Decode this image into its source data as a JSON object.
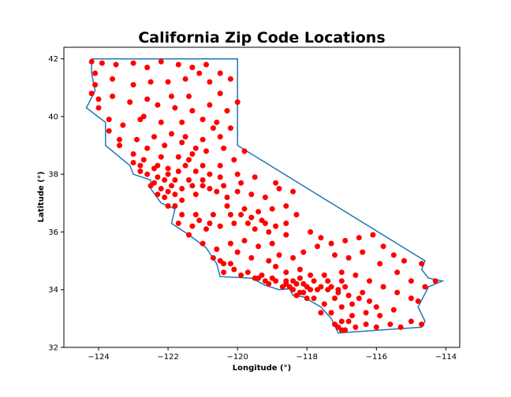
{
  "chart_data": {
    "type": "scatter",
    "title": "California Zip Code Locations",
    "xlabel": "Longitude (°)",
    "ylabel": "Latitude (°)",
    "xlim": [
      -125,
      -113.6
    ],
    "ylim": [
      32,
      42.4
    ],
    "xticks": [
      "−124",
      "−122",
      "−120",
      "−118",
      "−116",
      "−114"
    ],
    "yticks": [
      "32",
      "34",
      "36",
      "38",
      "40",
      "42"
    ],
    "grid": false,
    "legend": "none",
    "boundary_color": "#1f77b4",
    "marker_color": "#ff0000",
    "boundary": [
      [
        -124.2,
        42.0
      ],
      [
        -120.0,
        42.0
      ],
      [
        -120.0,
        39.0
      ],
      [
        -114.6,
        35.0
      ],
      [
        -114.7,
        34.7
      ],
      [
        -114.5,
        34.4
      ],
      [
        -114.1,
        34.3
      ],
      [
        -114.5,
        34.1
      ],
      [
        -114.8,
        33.4
      ],
      [
        -114.6,
        32.9
      ],
      [
        -114.7,
        32.7
      ],
      [
        -117.1,
        32.5
      ],
      [
        -117.3,
        33.0
      ],
      [
        -117.6,
        33.4
      ],
      [
        -118.1,
        33.75
      ],
      [
        -118.4,
        33.8
      ],
      [
        -118.5,
        34.03
      ],
      [
        -118.8,
        34.0
      ],
      [
        -119.2,
        34.15
      ],
      [
        -119.6,
        34.4
      ],
      [
        -120.5,
        34.45
      ],
      [
        -120.6,
        34.9
      ],
      [
        -120.9,
        35.45
      ],
      [
        -121.4,
        35.9
      ],
      [
        -121.9,
        36.3
      ],
      [
        -121.8,
        36.8
      ],
      [
        -122.2,
        37.0
      ],
      [
        -122.5,
        37.5
      ],
      [
        -122.5,
        37.8
      ],
      [
        -123.0,
        38.0
      ],
      [
        -123.1,
        38.3
      ],
      [
        -123.8,
        39.0
      ],
      [
        -123.8,
        39.8
      ],
      [
        -124.35,
        40.3
      ],
      [
        -124.1,
        40.9
      ],
      [
        -124.2,
        41.5
      ],
      [
        -124.2,
        42.0
      ]
    ],
    "points": [
      [
        -124.2,
        41.9
      ],
      [
        -123.9,
        41.85
      ],
      [
        -123.5,
        41.8
      ],
      [
        -123.0,
        41.85
      ],
      [
        -122.6,
        41.7
      ],
      [
        -122.2,
        41.9
      ],
      [
        -121.7,
        41.8
      ],
      [
        -121.3,
        41.7
      ],
      [
        -120.9,
        41.8
      ],
      [
        -120.5,
        41.5
      ],
      [
        -120.2,
        41.3
      ],
      [
        -120.8,
        41.2
      ],
      [
        -121.5,
        41.3
      ],
      [
        -122.0,
        41.2
      ],
      [
        -122.5,
        41.2
      ],
      [
        -123.0,
        41.1
      ],
      [
        -123.6,
        41.3
      ],
      [
        -124.1,
        41.1
      ],
      [
        -124.0,
        40.6
      ],
      [
        -123.6,
        40.7
      ],
      [
        -123.1,
        40.5
      ],
      [
        -122.6,
        40.6
      ],
      [
        -122.3,
        40.4
      ],
      [
        -121.8,
        40.3
      ],
      [
        -121.3,
        40.2
      ],
      [
        -120.8,
        40.4
      ],
      [
        -120.3,
        40.2
      ],
      [
        -120.6,
        39.8
      ],
      [
        -121.0,
        39.9
      ],
      [
        -121.6,
        39.8
      ],
      [
        -122.2,
        39.8
      ],
      [
        -122.8,
        39.9
      ],
      [
        -123.3,
        39.7
      ],
      [
        -123.7,
        39.5
      ],
      [
        -123.4,
        39.2
      ],
      [
        -122.9,
        39.2
      ],
      [
        -122.4,
        39.3
      ],
      [
        -121.9,
        39.4
      ],
      [
        -121.5,
        39.3
      ],
      [
        -121.0,
        39.2
      ],
      [
        -120.5,
        39.3
      ],
      [
        -120.2,
        39.6
      ],
      [
        -120.4,
        38.9
      ],
      [
        -120.9,
        38.8
      ],
      [
        -121.3,
        38.7
      ],
      [
        -121.7,
        38.6
      ],
      [
        -122.2,
        38.6
      ],
      [
        -122.7,
        38.5
      ],
      [
        -123.0,
        38.4
      ],
      [
        -122.8,
        38.1
      ],
      [
        -122.4,
        38.2
      ],
      [
        -122.0,
        38.2
      ],
      [
        -121.5,
        38.3
      ],
      [
        -121.0,
        38.3
      ],
      [
        -120.5,
        38.3
      ],
      [
        -120.1,
        38.5
      ],
      [
        -119.8,
        38.8
      ],
      [
        -120.0,
        38.0
      ],
      [
        -120.5,
        37.9
      ],
      [
        -121.0,
        37.8
      ],
      [
        -121.4,
        37.8
      ],
      [
        -121.8,
        37.8
      ],
      [
        -122.1,
        37.8
      ],
      [
        -122.3,
        37.9
      ],
      [
        -122.4,
        37.7
      ],
      [
        -122.2,
        37.5
      ],
      [
        -122.0,
        37.4
      ],
      [
        -121.8,
        37.3
      ],
      [
        -121.9,
        37.6
      ],
      [
        -122.1,
        37.2
      ],
      [
        -121.6,
        37.1
      ],
      [
        -121.2,
        37.3
      ],
      [
        -120.8,
        37.5
      ],
      [
        -120.4,
        37.6
      ],
      [
        -120.0,
        37.4
      ],
      [
        -119.6,
        37.3
      ],
      [
        -119.2,
        37.2
      ],
      [
        -118.8,
        37.5
      ],
      [
        -118.4,
        37.4
      ],
      [
        -118.6,
        36.9
      ],
      [
        -119.0,
        36.8
      ],
      [
        -119.4,
        36.7
      ],
      [
        -119.8,
        36.8
      ],
      [
        -120.3,
        36.9
      ],
      [
        -120.7,
        36.6
      ],
      [
        -121.2,
        36.6
      ],
      [
        -121.6,
        36.6
      ],
      [
        -121.8,
        36.9
      ],
      [
        -121.3,
        36.2
      ],
      [
        -120.9,
        36.1
      ],
      [
        -120.5,
        36.2
      ],
      [
        -120.1,
        36.3
      ],
      [
        -119.7,
        36.3
      ],
      [
        -119.3,
        36.4
      ],
      [
        -118.9,
        36.2
      ],
      [
        -118.6,
        35.9
      ],
      [
        -119.0,
        35.6
      ],
      [
        -119.4,
        35.5
      ],
      [
        -119.8,
        35.7
      ],
      [
        -120.2,
        35.6
      ],
      [
        -120.6,
        35.4
      ],
      [
        -120.7,
        35.1
      ],
      [
        -120.4,
        34.9
      ],
      [
        -120.1,
        34.7
      ],
      [
        -119.7,
        34.6
      ],
      [
        -119.3,
        34.5
      ],
      [
        -119.0,
        34.4
      ],
      [
        -118.6,
        34.3
      ],
      [
        -118.3,
        34.2
      ],
      [
        -118.0,
        34.1
      ],
      [
        -117.7,
        34.0
      ],
      [
        -117.4,
        34.0
      ],
      [
        -117.1,
        33.9
      ],
      [
        -116.8,
        33.8
      ],
      [
        -116.5,
        33.7
      ],
      [
        -116.2,
        33.6
      ],
      [
        -116.0,
        33.4
      ],
      [
        -116.3,
        33.2
      ],
      [
        -116.7,
        33.1
      ],
      [
        -117.0,
        32.9
      ],
      [
        -117.1,
        32.7
      ],
      [
        -116.9,
        32.6
      ],
      [
        -116.6,
        32.7
      ],
      [
        -116.3,
        32.8
      ],
      [
        -116.0,
        32.7
      ],
      [
        -115.6,
        32.8
      ],
      [
        -115.3,
        32.7
      ],
      [
        -115.0,
        32.9
      ],
      [
        -114.7,
        32.8
      ],
      [
        -114.8,
        33.6
      ],
      [
        -114.6,
        34.1
      ],
      [
        -114.3,
        34.3
      ],
      [
        -114.7,
        34.9
      ],
      [
        -115.2,
        35.0
      ],
      [
        -115.5,
        35.2
      ],
      [
        -115.8,
        35.5
      ],
      [
        -116.1,
        35.9
      ],
      [
        -116.5,
        35.8
      ],
      [
        -116.9,
        35.7
      ],
      [
        -117.3,
        35.6
      ],
      [
        -117.7,
        35.5
      ],
      [
        -118.1,
        35.3
      ],
      [
        -118.4,
        35.1
      ],
      [
        -118.2,
        34.7
      ],
      [
        -117.9,
        34.5
      ],
      [
        -117.5,
        34.5
      ],
      [
        -117.0,
        34.6
      ],
      [
        -116.6,
        34.5
      ],
      [
        -116.2,
        34.3
      ],
      [
        -115.8,
        34.1
      ],
      [
        -115.4,
        33.9
      ],
      [
        -115.0,
        33.7
      ],
      [
        -115.5,
        33.3
      ],
      [
        -115.9,
        33.1
      ],
      [
        -117.3,
        33.2
      ],
      [
        -117.5,
        33.5
      ],
      [
        -117.8,
        33.7
      ],
      [
        -118.1,
        33.9
      ],
      [
        -118.3,
        33.8
      ],
      [
        -118.4,
        34.0
      ],
      [
        -118.5,
        34.1
      ],
      [
        -118.7,
        34.1
      ],
      [
        -119.1,
        34.2
      ],
      [
        -119.5,
        34.4
      ],
      [
        -119.9,
        34.5
      ],
      [
        -120.4,
        34.6
      ],
      [
        -121.0,
        35.6
      ],
      [
        -121.4,
        35.9
      ],
      [
        -121.7,
        36.3
      ],
      [
        -122.0,
        36.9
      ],
      [
        -122.3,
        37.3
      ],
      [
        -122.5,
        37.6
      ],
      [
        -122.6,
        38.0
      ],
      [
        -123.0,
        38.7
      ],
      [
        -123.4,
        39.0
      ],
      [
        -123.7,
        39.9
      ],
      [
        -124.0,
        40.3
      ],
      [
        -124.2,
        40.8
      ],
      [
        -124.1,
        41.5
      ],
      [
        -121.1,
        41.5
      ],
      [
        -120.5,
        40.8
      ],
      [
        -121.9,
        40.7
      ],
      [
        -122.7,
        40.0
      ],
      [
        -121.4,
        40.7
      ],
      [
        -120.0,
        40.5
      ],
      [
        -120.7,
        39.6
      ],
      [
        -121.2,
        38.1
      ],
      [
        -120.8,
        38.0
      ],
      [
        -119.9,
        37.7
      ],
      [
        -119.5,
        37.9
      ],
      [
        -118.9,
        37.7
      ],
      [
        -118.6,
        36.3
      ],
      [
        -118.3,
        36.6
      ],
      [
        -117.9,
        36.0
      ],
      [
        -117.6,
        35.8
      ],
      [
        -117.2,
        35.2
      ],
      [
        -116.8,
        35.1
      ],
      [
        -116.4,
        35.3
      ],
      [
        -115.9,
        34.9
      ],
      [
        -115.4,
        34.6
      ],
      [
        -115.0,
        34.3
      ],
      [
        -118.8,
        35.2
      ],
      [
        -119.1,
        35.0
      ],
      [
        -119.6,
        35.1
      ],
      [
        -120.0,
        35.3
      ],
      [
        -118.9,
        34.8
      ],
      [
        -118.6,
        34.6
      ],
      [
        -118.2,
        34.4
      ],
      [
        -117.8,
        34.3
      ],
      [
        -117.4,
        34.3
      ],
      [
        -117.0,
        34.3
      ],
      [
        -116.9,
        34.1
      ],
      [
        -117.2,
        33.7
      ],
      [
        -117.0,
        33.4
      ],
      [
        -116.7,
        33.5
      ],
      [
        -116.4,
        33.9
      ],
      [
        -117.6,
        33.2
      ],
      [
        -117.2,
        32.8
      ],
      [
        -117.0,
        32.6
      ],
      [
        -116.8,
        32.9
      ],
      [
        -118.0,
        33.7
      ],
      [
        -118.2,
        33.9
      ],
      [
        -118.4,
        34.3
      ],
      [
        -118.1,
        34.2
      ],
      [
        -117.9,
        34.0
      ],
      [
        -117.6,
        34.1
      ],
      [
        -117.3,
        34.1
      ],
      [
        -117.1,
        34.0
      ],
      [
        -118.6,
        34.2
      ],
      [
        -118.9,
        34.3
      ],
      [
        -119.2,
        34.3
      ],
      [
        -119.4,
        34.4
      ],
      [
        -120.2,
        34.9
      ],
      [
        -120.5,
        35.0
      ],
      [
        -121.1,
        36.4
      ],
      [
        -120.8,
        36.3
      ],
      [
        -120.2,
        36.6
      ],
      [
        -119.9,
        36.6
      ],
      [
        -119.6,
        36.5
      ],
      [
        -119.2,
        36.3
      ],
      [
        -119.5,
        36.1
      ],
      [
        -119.1,
        36.0
      ],
      [
        -120.3,
        37.2
      ],
      [
        -120.6,
        37.4
      ],
      [
        -121.0,
        37.6
      ],
      [
        -121.3,
        37.6
      ],
      [
        -121.6,
        37.5
      ],
      [
        -122.0,
        38.0
      ],
      [
        -121.7,
        38.1
      ],
      [
        -121.4,
        38.5
      ],
      [
        -121.2,
        38.9
      ],
      [
        -121.6,
        39.1
      ],
      [
        -122.1,
        39.0
      ],
      [
        -122.6,
        38.9
      ],
      [
        -122.3,
        38.3
      ],
      [
        -122.8,
        38.3
      ]
    ]
  }
}
